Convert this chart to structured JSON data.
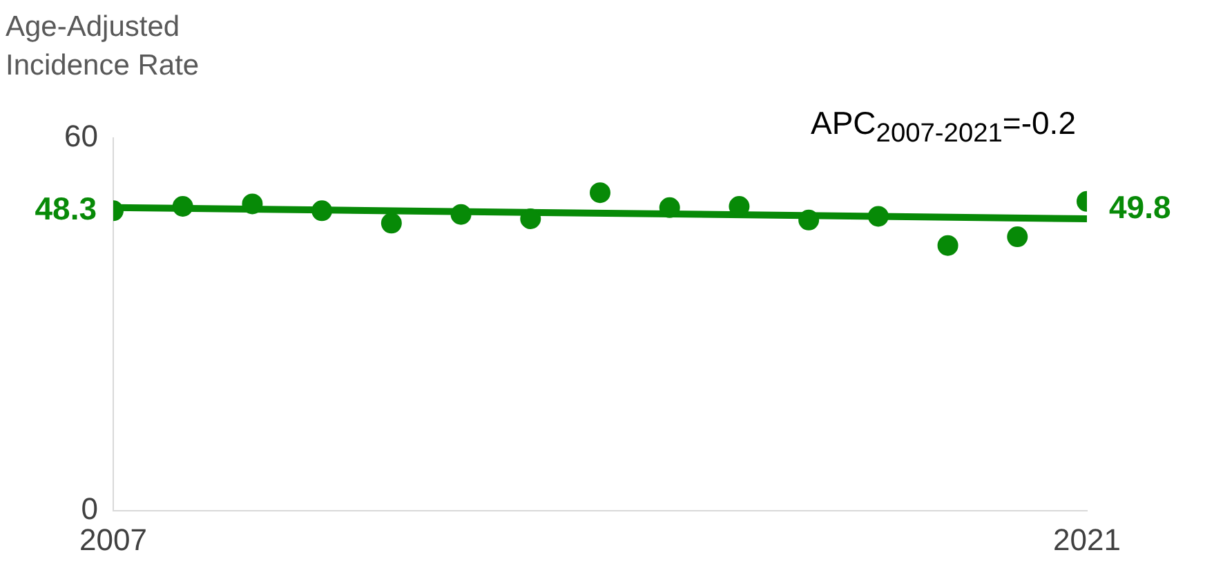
{
  "chart_data": {
    "type": "scatter",
    "ylabel": "Age-Adjusted Incidence Rate",
    "annotations": [
      "APC$_{2007-2021}$=-0.2"
    ],
    "x": [
      2007,
      2008,
      2009,
      2010,
      2011,
      2012,
      2013,
      2014,
      2015,
      2016,
      2017,
      2018,
      2019,
      2020,
      2021
    ],
    "xlim": [
      2007,
      2021
    ],
    "xticks": [
      2007,
      2021
    ],
    "ylim": [
      0,
      60
    ],
    "yticks": [
      0,
      60
    ],
    "grid": false,
    "legend": false,
    "series": [
      {
        "marker": "circle",
        "color": "#078a07",
        "values": [
          48.3,
          49.0,
          49.4,
          48.3,
          46.3,
          47.7,
          47.0,
          51.2,
          48.8,
          49.0,
          46.8,
          47.4,
          42.7,
          44.1,
          49.8
        ],
        "value_labels": [
          "48.3",
          null,
          null,
          null,
          null,
          null,
          null,
          null,
          null,
          null,
          null,
          null,
          null,
          null,
          "49.8"
        ]
      },
      {
        "type": "line",
        "marker": "none",
        "color": "#078a07",
        "x": [
          2007,
          2021
        ],
        "values": [
          48.8,
          47.0
        ],
        "line_style": "solid"
      }
    ]
  }
}
